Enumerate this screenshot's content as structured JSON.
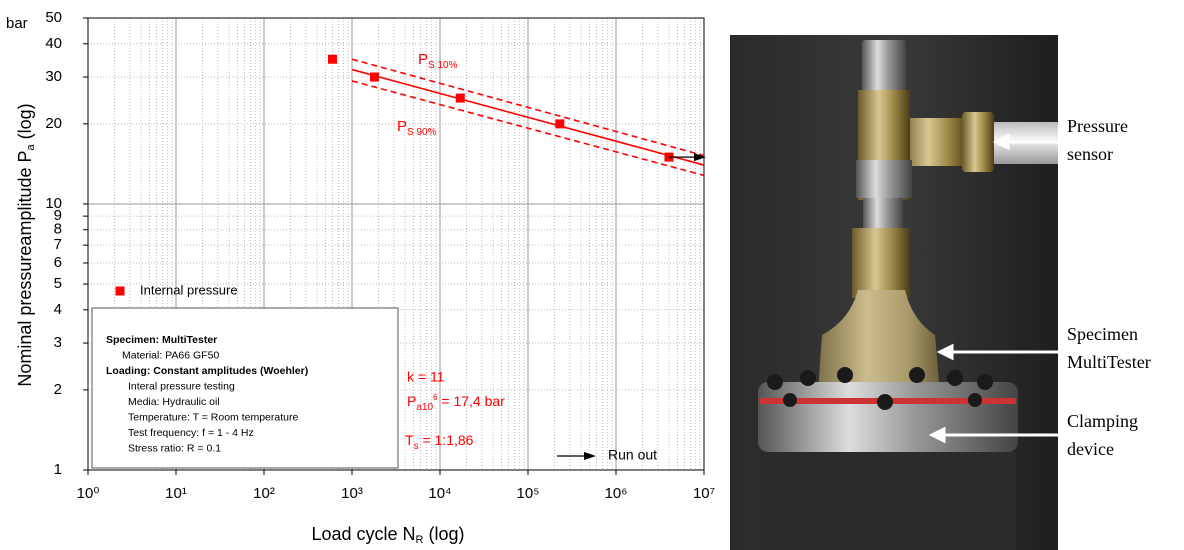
{
  "chart_data": {
    "type": "scatter",
    "y_unit": "bar",
    "x_label": {
      "main": "Load cycle N",
      "sub": "R",
      "suffix": " (log)"
    },
    "y_label": {
      "main": "Nominal pressureamplitude P",
      "sub": "a",
      "suffix": " (log)"
    },
    "log_x": true,
    "log_y": true,
    "grid": true,
    "minor_grid": true,
    "xlim": [
      1,
      10000000
    ],
    "ylim": [
      1,
      50
    ],
    "xticks": [
      {
        "value": 1,
        "label": "10⁰"
      },
      {
        "value": 10,
        "label": "10¹"
      },
      {
        "value": 100,
        "label": "10²"
      },
      {
        "value": 1000,
        "label": "10³"
      },
      {
        "value": 10000,
        "label": "10⁴"
      },
      {
        "value": 100000,
        "label": "10⁵"
      },
      {
        "value": 1000000,
        "label": "10⁶"
      },
      {
        "value": 10000000,
        "label": "10⁷"
      }
    ],
    "yticks": [
      1,
      2,
      3,
      4,
      5,
      6,
      7,
      8,
      9,
      10,
      20,
      30,
      40,
      50
    ],
    "series": [
      {
        "name": "Internal pressure",
        "color": "#ff0000",
        "x": [
          600,
          1800,
          17000,
          230000,
          4000000
        ],
        "values": [
          35,
          30,
          25,
          20,
          15
        ]
      }
    ],
    "fit_lines": [
      {
        "label": {
          "main": "P",
          "sub": "S 10%"
        },
        "style": "dashed",
        "color": "#ff0000",
        "x": [
          1000,
          10000000
        ],
        "values": [
          35,
          15.2
        ]
      },
      {
        "style": "solid",
        "color": "#ff0000",
        "x": [
          1000,
          10000000
        ],
        "values": [
          32,
          14
        ]
      },
      {
        "label": {
          "main": "P",
          "sub": "S 90%"
        },
        "style": "dashed",
        "color": "#ff0000",
        "x": [
          1000,
          10000000
        ],
        "values": [
          29,
          12.8
        ]
      }
    ],
    "legend": {
      "position": "lower left"
    },
    "annotations": {
      "k": "k = 11",
      "p_a": {
        "main": "P",
        "sub": "a10",
        "sup": "6",
        "rest": " = 17,4 bar"
      },
      "t_s": {
        "main": "T",
        "sub": "s",
        "rest": " = 1:1,86"
      },
      "runout": "Run out"
    },
    "textbox": [
      {
        "text": "Specimen: MultiTester",
        "bold": true
      },
      {
        "text": "Material: PA66 GF50",
        "bold": false
      },
      {
        "text": "Loading: Constant amplitudes (Woehler)",
        "bold": true
      },
      {
        "text": "Interal pressure testing",
        "bold": false
      },
      {
        "text": "Media: Hydraulic oil",
        "bold": false
      },
      {
        "text": "Temperature: T = Room temperature",
        "bold": false
      },
      {
        "text": "Test frequency: f = 1 - 4 Hz",
        "bold": false
      },
      {
        "text": "Stress ratio: R = 0.1",
        "bold": false
      }
    ]
  },
  "photo_labels": [
    [
      "Pressure",
      "sensor"
    ],
    [
      "Specimen",
      "MultiTester"
    ],
    [
      "Clamping",
      "device"
    ]
  ]
}
